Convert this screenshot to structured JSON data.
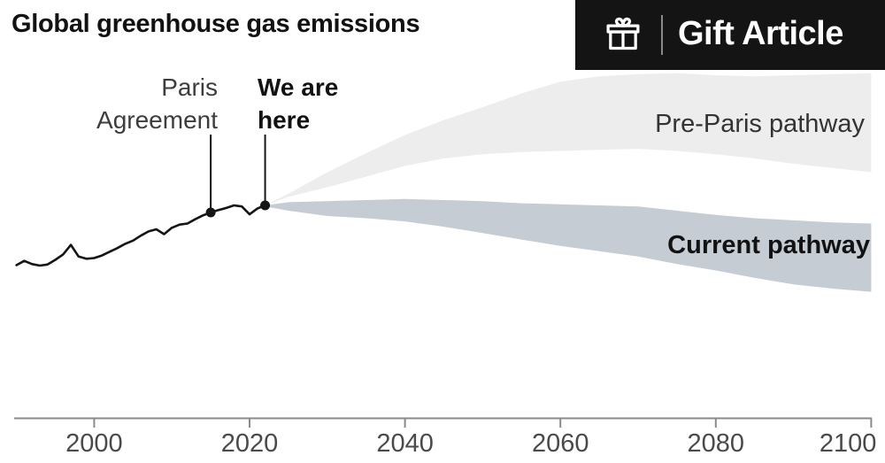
{
  "page": {
    "title": "Global greenhouse gas emissions"
  },
  "gift_button": {
    "label": "Gift Article",
    "icon": "gift-icon"
  },
  "annotations": {
    "paris": {
      "lines": [
        "Paris",
        "Agreement"
      ],
      "year": 2015,
      "value": 96.7
    },
    "here": {
      "lines": [
        "We are",
        "here"
      ],
      "year": 2022,
      "value": 100
    }
  },
  "labels": {
    "pre_paris": "Pre-Paris pathway",
    "current": "Current pathway"
  },
  "colors": {
    "background": "#ffffff",
    "button_bg": "#141414",
    "button_text": "#ffffff",
    "title_text": "#121212",
    "historical_line": "#151515",
    "pre_paris_fan": "#ededed",
    "current_fan": "#c5ccd4",
    "axis": "#8a8a8a",
    "tick_label": "#4a4a4a",
    "annotation_gray": "#3d3d3d"
  },
  "chart_data": {
    "type": "area",
    "title": "Global greenhouse gas emissions",
    "units": "emissions index (2022 = 100); chart shows no y-axis",
    "x_axis": {
      "ticks": [
        2000,
        2020,
        2040,
        2060,
        2080,
        2100
      ],
      "range": [
        1990,
        2100
      ]
    },
    "historical": {
      "name": "Historical emissions",
      "years": [
        1990,
        1991,
        1992,
        1993,
        1994,
        1995,
        1996,
        1997,
        1998,
        1999,
        2000,
        2001,
        2002,
        2003,
        2004,
        2005,
        2006,
        2007,
        2008,
        2009,
        2010,
        2011,
        2012,
        2013,
        2014,
        2015,
        2016,
        2017,
        2018,
        2019,
        2020,
        2021,
        2022
      ],
      "values": [
        72,
        74,
        72.5,
        71.8,
        72.3,
        74.5,
        77,
        81.5,
        76,
        75,
        75.3,
        76.5,
        78.3,
        80,
        82,
        83.5,
        85.8,
        87.8,
        88.8,
        86.5,
        89.5,
        91,
        91.5,
        93.5,
        95.3,
        96.7,
        97.8,
        98.8,
        100,
        99.5,
        95.8,
        98.5,
        100
      ]
    },
    "fans": [
      {
        "name": "Pre-Paris pathway",
        "color": "#ededed",
        "years": [
          2022,
          2025,
          2030,
          2035,
          2040,
          2045,
          2050,
          2055,
          2060,
          2065,
          2070,
          2075,
          2080,
          2085,
          2090,
          2095,
          2100
        ],
        "upper": [
          100,
          105.5,
          115.5,
          124.5,
          133,
          140,
          146,
          152.5,
          158,
          160.5,
          161.5,
          162,
          161,
          160.5,
          161,
          161.5,
          162
        ],
        "lower": [
          100,
          104,
          108.5,
          113.5,
          118.5,
          122,
          124,
          125,
          125.5,
          126,
          126.5,
          125.5,
          124,
          122,
          119.5,
          117.5,
          115.5
        ]
      },
      {
        "name": "Current pathway",
        "color": "#c5ccd4",
        "years": [
          2022,
          2025,
          2030,
          2035,
          2040,
          2045,
          2050,
          2055,
          2060,
          2065,
          2070,
          2075,
          2080,
          2085,
          2090,
          2095,
          2100
        ],
        "upper": [
          100,
          101.5,
          102,
          102.5,
          103,
          102.5,
          102,
          101,
          100.5,
          100,
          99.5,
          97.5,
          95.5,
          94,
          93,
          92,
          91.5
        ],
        "lower": [
          99.5,
          97.5,
          95,
          94,
          92.5,
          90,
          87,
          84,
          81,
          78.5,
          76,
          72.5,
          69.5,
          66,
          63,
          61,
          59.5
        ]
      }
    ],
    "markers": [
      {
        "label": "Paris Agreement",
        "year": 2015,
        "value": 96.7
      },
      {
        "label": "We are here",
        "year": 2022,
        "value": 100
      }
    ]
  }
}
